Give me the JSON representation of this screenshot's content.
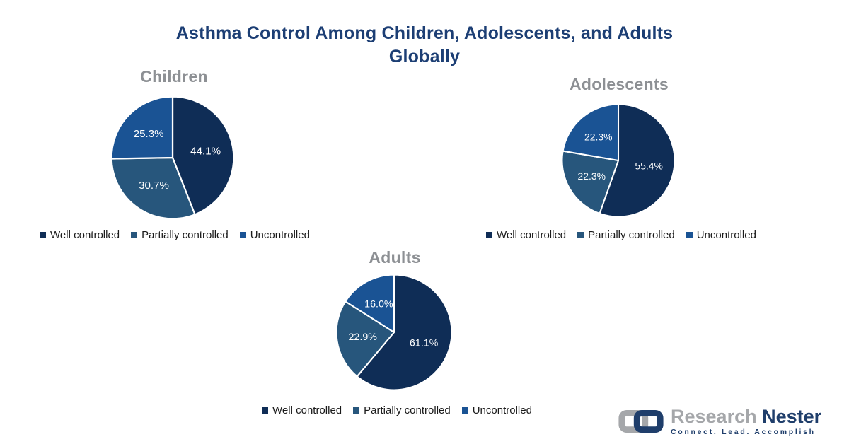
{
  "title": {
    "full_text": "Asthma Control Among Children, Adolescents, and Adults Globally",
    "lines": [
      "Asthma Control Among Children, Adolescents, and Adults",
      "Globally"
    ],
    "color": "#1C3E74"
  },
  "chart_data": [
    {
      "type": "pie",
      "title": "Children",
      "labels": [
        "Well controlled",
        "Partially controlled",
        "Uncontrolled"
      ],
      "values": [
        44.1,
        30.7,
        25.3
      ],
      "value_labels": [
        "44.1%",
        "30.7%",
        "25.3%"
      ],
      "colors": [
        "#0F2D56",
        "#27567C",
        "#1A5394"
      ],
      "start_angle": "top",
      "direction": "clockwise",
      "label_position": "inside",
      "legend_position": "bottom"
    },
    {
      "type": "pie",
      "title": "Adolescents",
      "labels": [
        "Well controlled",
        "Partially controlled",
        "Uncontrolled"
      ],
      "values": [
        55.4,
        22.3,
        22.3
      ],
      "value_labels": [
        "55.4%",
        "22.3%",
        "22.3%"
      ],
      "colors": [
        "#0F2D56",
        "#27567C",
        "#1A5394"
      ],
      "start_angle": "top",
      "direction": "clockwise",
      "label_position": "inside",
      "legend_position": "bottom"
    },
    {
      "type": "pie",
      "title": "Adults",
      "labels": [
        "Well controlled",
        "Partially controlled",
        "Uncontrolled"
      ],
      "values": [
        61.1,
        22.9,
        16.0
      ],
      "value_labels": [
        "61.1%",
        "22.9%",
        "16.0%"
      ],
      "colors": [
        "#0F2D56",
        "#27567C",
        "#1A5394"
      ],
      "start_angle": "top",
      "direction": "clockwise",
      "label_position": "inside",
      "legend_position": "bottom"
    }
  ],
  "styles": {
    "slice_label_color": "#FFFFFF",
    "slice_border_color": "#FFFFFF",
    "section_title_color": "#8D9094",
    "legend_text_color": "#1A1A1A"
  },
  "logo": {
    "brand_part1": "Research",
    "brand_part2": "Nester",
    "tagline": "Connect. Lead. Accomplish",
    "colors": {
      "gray": "#A5A7AA",
      "navy": "#1F3E6B"
    }
  }
}
